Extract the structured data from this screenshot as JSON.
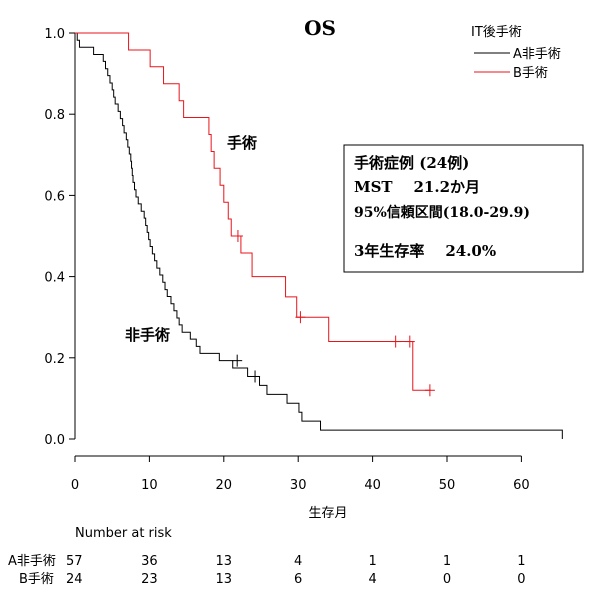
{
  "chart_data": {
    "type": "line",
    "subtype": "kaplan-meier",
    "title": "OS",
    "xlabel": "生存月",
    "ylabel": "",
    "xlim": [
      0,
      66
    ],
    "ylim": [
      0,
      1.05
    ],
    "xticks": [
      0,
      10,
      20,
      30,
      40,
      50,
      60
    ],
    "yticks": [
      0.0,
      0.2,
      0.4,
      0.6,
      0.8,
      1.0
    ],
    "ytick_labels": [
      "0.0",
      "0.2",
      "0.4",
      "0.6",
      "0.8",
      "1.0"
    ],
    "grid": false,
    "legend": {
      "title": "IT後手術",
      "placement": "top-right",
      "entries": [
        {
          "label": "A非手術",
          "color": "#000000"
        },
        {
          "label": "B手術",
          "color": "#e8141b"
        }
      ]
    },
    "series": [
      {
        "name": "A非手術",
        "color": "#000000",
        "steps": [
          [
            0,
            1.0
          ],
          [
            0.3,
            0.982
          ],
          [
            0.6,
            0.965
          ],
          [
            2.5,
            0.947
          ],
          [
            3.8,
            0.93
          ],
          [
            4.1,
            0.912
          ],
          [
            4.4,
            0.895
          ],
          [
            4.7,
            0.877
          ],
          [
            5.0,
            0.86
          ],
          [
            5.2,
            0.842
          ],
          [
            5.4,
            0.825
          ],
          [
            5.8,
            0.807
          ],
          [
            6.1,
            0.789
          ],
          [
            6.4,
            0.772
          ],
          [
            6.6,
            0.754
          ],
          [
            6.9,
            0.737
          ],
          [
            7.1,
            0.719
          ],
          [
            7.3,
            0.702
          ],
          [
            7.5,
            0.684
          ],
          [
            7.6,
            0.667
          ],
          [
            7.7,
            0.649
          ],
          [
            7.8,
            0.632
          ],
          [
            8.0,
            0.614
          ],
          [
            8.2,
            0.596
          ],
          [
            8.5,
            0.579
          ],
          [
            8.9,
            0.561
          ],
          [
            9.3,
            0.544
          ],
          [
            9.5,
            0.526
          ],
          [
            9.7,
            0.509
          ],
          [
            9.9,
            0.491
          ],
          [
            10.1,
            0.474
          ],
          [
            10.4,
            0.456
          ],
          [
            10.7,
            0.439
          ],
          [
            11.0,
            0.421
          ],
          [
            11.4,
            0.404
          ],
          [
            11.8,
            0.386
          ],
          [
            12.1,
            0.368
          ],
          [
            12.4,
            0.351
          ],
          [
            12.9,
            0.333
          ],
          [
            13.3,
            0.316
          ],
          [
            13.7,
            0.298
          ],
          [
            14.0,
            0.281
          ],
          [
            14.4,
            0.263
          ],
          [
            15.5,
            0.246
          ],
          [
            16.3,
            0.228
          ],
          [
            16.8,
            0.211
          ],
          [
            19.4,
            0.193
          ],
          [
            21.2,
            0.175
          ],
          [
            23.2,
            0.154
          ],
          [
            24.8,
            0.132
          ],
          [
            25.8,
            0.11
          ],
          [
            28.5,
            0.088
          ],
          [
            30.1,
            0.066
          ],
          [
            30.5,
            0.044
          ],
          [
            33.0,
            0.022
          ],
          [
            65.5,
            0.0
          ]
        ],
        "censored": [
          [
            21.8,
            0.193
          ],
          [
            24.2,
            0.154
          ]
        ],
        "end_x": 65.5,
        "end_y": 0.022
      },
      {
        "name": "B手術",
        "color": "#e8141b",
        "steps": [
          [
            0,
            1.0
          ],
          [
            7.2,
            0.958
          ],
          [
            10.1,
            0.917
          ],
          [
            11.9,
            0.875
          ],
          [
            14.0,
            0.833
          ],
          [
            14.6,
            0.792
          ],
          [
            18.0,
            0.75
          ],
          [
            18.3,
            0.708
          ],
          [
            18.7,
            0.667
          ],
          [
            19.5,
            0.625
          ],
          [
            20.0,
            0.583
          ],
          [
            20.6,
            0.542
          ],
          [
            21.0,
            0.5
          ],
          [
            22.3,
            0.458
          ],
          [
            23.8,
            0.4
          ],
          [
            28.3,
            0.35
          ],
          [
            29.8,
            0.3
          ],
          [
            34.1,
            0.24
          ],
          [
            45.4,
            0.12
          ]
        ],
        "censored": [
          [
            21.9,
            0.5
          ],
          [
            30.3,
            0.3
          ],
          [
            43.1,
            0.24
          ],
          [
            45.0,
            0.24
          ],
          [
            47.7,
            0.12
          ]
        ],
        "end_x": 47.8,
        "end_y": 0.12
      }
    ],
    "annotations": [
      {
        "text": "手術",
        "x": 18.5,
        "y": 0.725
      },
      {
        "text": "非手術",
        "x": 6.7,
        "y": 0.245
      }
    ],
    "stats_box": {
      "line1": "手術症例  (24例)",
      "line2": "MST    21.2か月",
      "line3": "95%信頼区間(18.0-29.9)",
      "line4": "3年生存率    24.0%"
    },
    "risk_table": {
      "title": "Number at risk",
      "timepoints": [
        0,
        10,
        20,
        30,
        40,
        50,
        60
      ],
      "rows": [
        {
          "label": "A非手術",
          "values": [
            "57",
            "36",
            "13",
            "4",
            "1",
            "1",
            "1"
          ]
        },
        {
          "label": "B手術",
          "values": [
            "24",
            "23",
            "13",
            "6",
            "4",
            "0",
            "0"
          ]
        }
      ]
    }
  }
}
